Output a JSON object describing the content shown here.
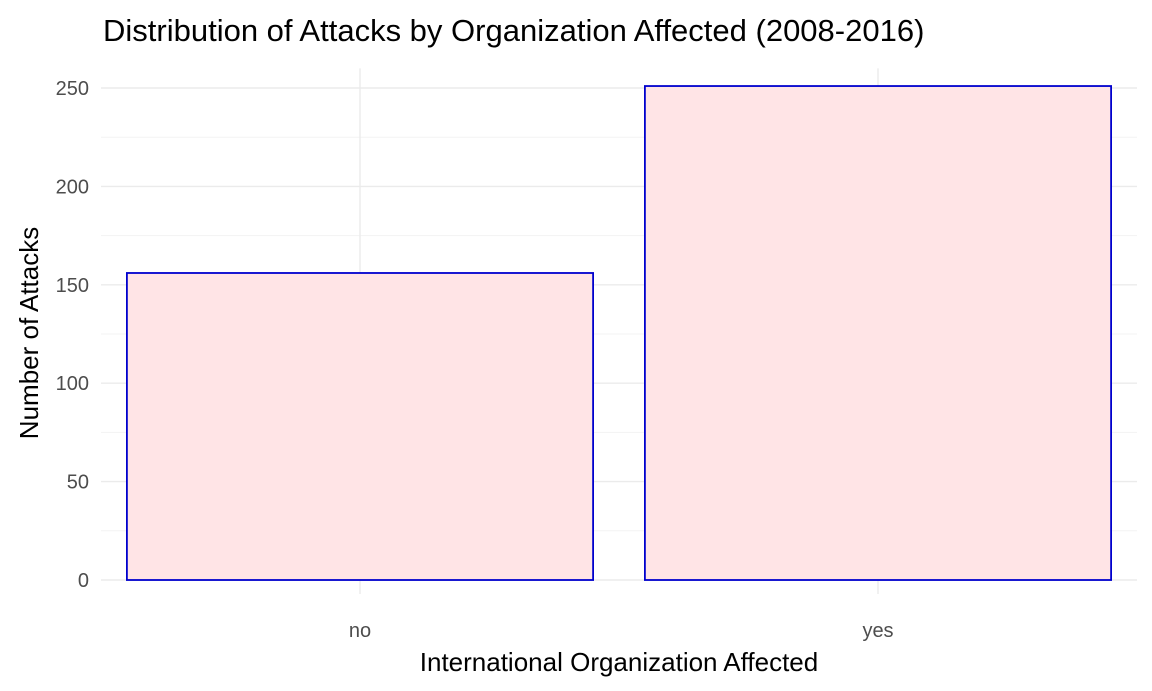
{
  "chart_data": {
    "type": "bar",
    "title": "Distribution of Attacks by Organization Affected (2008-2016)",
    "xlabel": "International Organization Affected",
    "ylabel": "Number of Attacks",
    "categories": [
      "no",
      "yes"
    ],
    "values": [
      156,
      251
    ],
    "ylim": [
      0,
      260
    ],
    "yticks": [
      0,
      50,
      100,
      150,
      200,
      250
    ],
    "ytick_labels": [
      "0",
      "50",
      "100",
      "150",
      "200",
      "250"
    ],
    "grid": true,
    "legend": "none",
    "colors": {
      "bar_fill": "#ffe4e6",
      "bar_stroke": "#0000cd",
      "grid_major": "#ebebeb",
      "grid_minor": "#f3f3f3",
      "tick_text": "#4d4d4d",
      "text": "#000000"
    }
  }
}
